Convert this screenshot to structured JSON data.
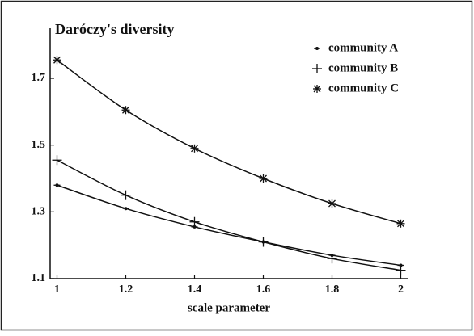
{
  "chart_data": {
    "type": "line",
    "title": "Daróczy's diversity",
    "x_label": "scale parameter",
    "x": [
      1,
      1.2,
      1.4,
      1.6,
      1.8,
      2
    ],
    "series": [
      {
        "name": "community A",
        "color": "#111111",
        "marker": "dot",
        "values": [
          1.38,
          1.31,
          1.255,
          1.21,
          1.17,
          1.14
        ]
      },
      {
        "name": "community B",
        "color": "#111111",
        "marker": "plus",
        "values": [
          1.455,
          1.35,
          1.27,
          1.21,
          1.16,
          1.125
        ]
      },
      {
        "name": "community C",
        "color": "#111111",
        "marker": "asterisk",
        "values": [
          1.755,
          1.605,
          1.49,
          1.4,
          1.325,
          1.265
        ]
      }
    ],
    "xlim": [
      0.98,
      2.02
    ],
    "xticks": [
      1,
      1.2,
      1.4,
      1.6,
      1.8,
      2
    ],
    "ylim": [
      1.1,
      1.85
    ],
    "yticks": [
      1.1,
      1.3,
      1.5,
      1.7
    ],
    "grid": false,
    "legend": "upper right"
  }
}
